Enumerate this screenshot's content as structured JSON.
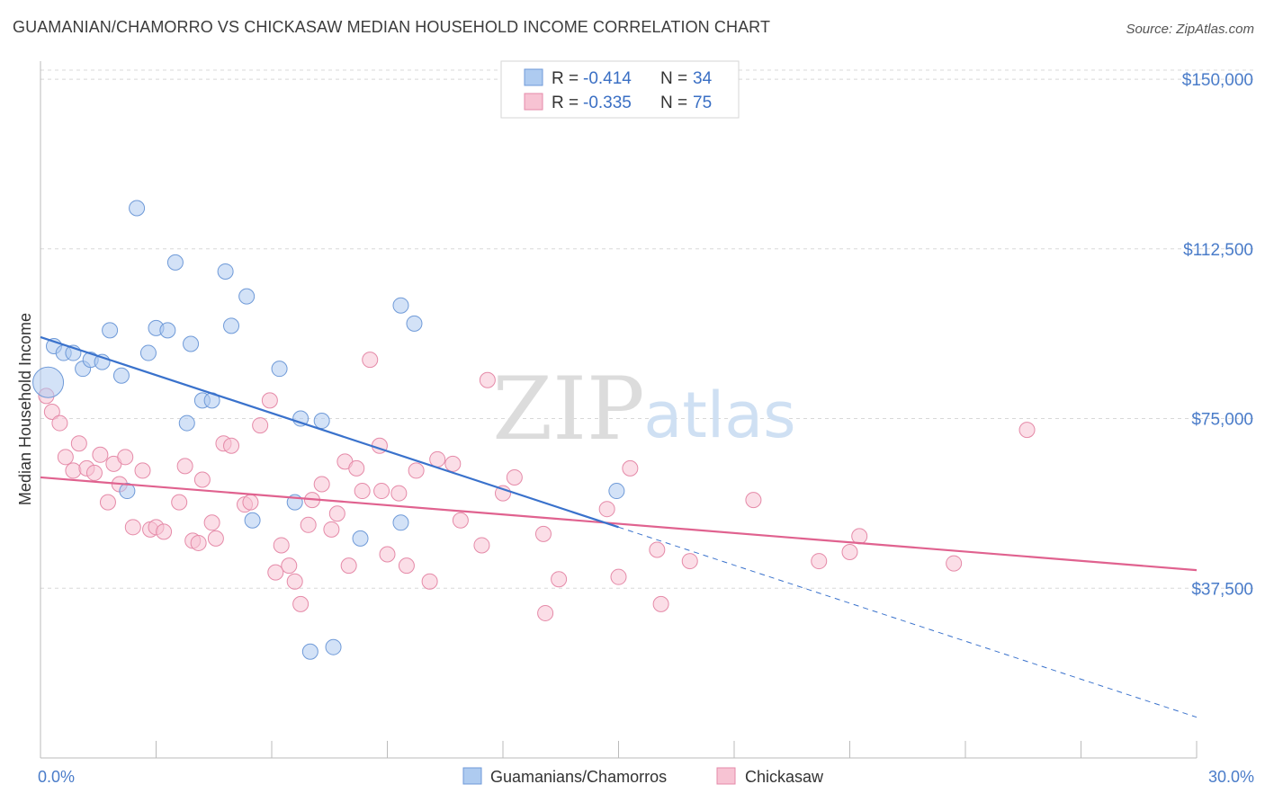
{
  "title": "GUAMANIAN/CHAMORRO VS CHICKASAW MEDIAN HOUSEHOLD INCOME CORRELATION CHART",
  "source": "Source: ZipAtlas.com",
  "watermark": {
    "zip": "ZIP",
    "atlas": "atlas"
  },
  "colors": {
    "blue_fill": "#aecbf0",
    "blue_stroke": "#6f9ad8",
    "blue_line": "#3a72cc",
    "pink_fill": "#f7c3d3",
    "pink_stroke": "#e58aa8",
    "pink_line": "#e0628f",
    "grid": "#d8d8d8",
    "axis_text": "#4a7cc9"
  },
  "legend": {
    "rows": [
      {
        "r_label": "R = ",
        "r_value": "-0.414",
        "n_label": "N = ",
        "n_value": "34"
      },
      {
        "r_label": "R = ",
        "r_value": "-0.335",
        "n_label": "N = ",
        "n_value": "75"
      }
    ]
  },
  "chart_data": {
    "type": "scatter",
    "xlabel": "",
    "ylabel": "Median Household Income",
    "xlim": [
      0,
      30
    ],
    "ylim": [
      0,
      152000
    ],
    "x_tick_labels": [
      "0.0%",
      "30.0%"
    ],
    "y_ticks": [
      37500,
      75000,
      112500,
      150000
    ],
    "y_tick_labels": [
      "$37,500",
      "$75,000",
      "$112,500",
      "$150,000"
    ],
    "grid": true,
    "legend_position": "top-center",
    "series": [
      {
        "name": "Guamanians/Chamorros",
        "color": "#aecbf0",
        "points": [
          [
            0.2,
            83000
          ],
          [
            0.35,
            91000
          ],
          [
            0.6,
            89500
          ],
          [
            0.85,
            89500
          ],
          [
            1.1,
            86000
          ],
          [
            1.3,
            88000
          ],
          [
            1.6,
            87500
          ],
          [
            1.8,
            94500
          ],
          [
            2.1,
            84500
          ],
          [
            2.25,
            59000
          ],
          [
            2.5,
            121500
          ],
          [
            2.8,
            89500
          ],
          [
            3.0,
            95000
          ],
          [
            3.3,
            94500
          ],
          [
            3.5,
            109500
          ],
          [
            3.8,
            74000
          ],
          [
            3.9,
            91500
          ],
          [
            4.2,
            79000
          ],
          [
            4.45,
            79000
          ],
          [
            4.8,
            107500
          ],
          [
            4.95,
            95500
          ],
          [
            5.35,
            102000
          ],
          [
            5.5,
            52500
          ],
          [
            6.2,
            86000
          ],
          [
            6.6,
            56500
          ],
          [
            6.75,
            75000
          ],
          [
            7.0,
            23500
          ],
          [
            7.3,
            74500
          ],
          [
            7.6,
            24500
          ],
          [
            8.3,
            48500
          ],
          [
            9.35,
            100000
          ],
          [
            9.35,
            52000
          ],
          [
            9.7,
            96000
          ],
          [
            14.95,
            59000
          ]
        ]
      },
      {
        "name": "Chickasaw",
        "color": "#f7c3d3",
        "points": [
          [
            0.15,
            80000
          ],
          [
            0.3,
            76500
          ],
          [
            0.5,
            74000
          ],
          [
            0.65,
            66500
          ],
          [
            0.85,
            63500
          ],
          [
            1.0,
            69500
          ],
          [
            1.2,
            64000
          ],
          [
            1.4,
            63000
          ],
          [
            1.55,
            67000
          ],
          [
            1.75,
            56500
          ],
          [
            1.9,
            65000
          ],
          [
            2.05,
            60500
          ],
          [
            2.2,
            66500
          ],
          [
            2.4,
            51000
          ],
          [
            2.65,
            63500
          ],
          [
            2.85,
            50500
          ],
          [
            3.0,
            51000
          ],
          [
            3.2,
            50000
          ],
          [
            3.6,
            56500
          ],
          [
            3.75,
            64500
          ],
          [
            3.95,
            48000
          ],
          [
            4.1,
            47500
          ],
          [
            4.2,
            61500
          ],
          [
            4.45,
            52000
          ],
          [
            4.55,
            48500
          ],
          [
            4.75,
            69500
          ],
          [
            4.95,
            69000
          ],
          [
            5.3,
            56000
          ],
          [
            5.45,
            56500
          ],
          [
            5.7,
            73500
          ],
          [
            5.95,
            79000
          ],
          [
            6.1,
            41000
          ],
          [
            6.25,
            47000
          ],
          [
            6.45,
            42500
          ],
          [
            6.6,
            39000
          ],
          [
            6.75,
            34000
          ],
          [
            6.95,
            51500
          ],
          [
            7.05,
            57000
          ],
          [
            7.3,
            60500
          ],
          [
            7.55,
            50500
          ],
          [
            7.7,
            54000
          ],
          [
            7.9,
            65500
          ],
          [
            8.0,
            42500
          ],
          [
            8.2,
            64000
          ],
          [
            8.35,
            59000
          ],
          [
            8.55,
            88000
          ],
          [
            8.8,
            69000
          ],
          [
            8.85,
            59000
          ],
          [
            9.0,
            45000
          ],
          [
            9.3,
            58500
          ],
          [
            9.5,
            42500
          ],
          [
            9.75,
            63500
          ],
          [
            10.1,
            39000
          ],
          [
            10.3,
            66000
          ],
          [
            10.7,
            65000
          ],
          [
            10.9,
            52500
          ],
          [
            11.45,
            47000
          ],
          [
            11.6,
            83500
          ],
          [
            12.0,
            58500
          ],
          [
            12.3,
            62000
          ],
          [
            13.05,
            49500
          ],
          [
            13.1,
            32000
          ],
          [
            13.45,
            39500
          ],
          [
            14.7,
            55000
          ],
          [
            15.0,
            40000
          ],
          [
            15.3,
            64000
          ],
          [
            16.0,
            46000
          ],
          [
            16.1,
            34000
          ],
          [
            16.85,
            43500
          ],
          [
            18.5,
            57000
          ],
          [
            20.2,
            43500
          ],
          [
            21.0,
            45500
          ],
          [
            21.25,
            49000
          ],
          [
            23.7,
            43000
          ],
          [
            25.6,
            72500
          ]
        ]
      }
    ],
    "trendlines": [
      {
        "series": "Guamanians/Chamorros",
        "x": [
          0,
          15
        ],
        "y": [
          93000,
          51000
        ],
        "dashed_extension": {
          "x": [
            15,
            30
          ],
          "y": [
            51000,
            9000
          ]
        }
      },
      {
        "series": "Chickasaw",
        "x": [
          0,
          30
        ],
        "y": [
          62000,
          41500
        ]
      }
    ]
  }
}
